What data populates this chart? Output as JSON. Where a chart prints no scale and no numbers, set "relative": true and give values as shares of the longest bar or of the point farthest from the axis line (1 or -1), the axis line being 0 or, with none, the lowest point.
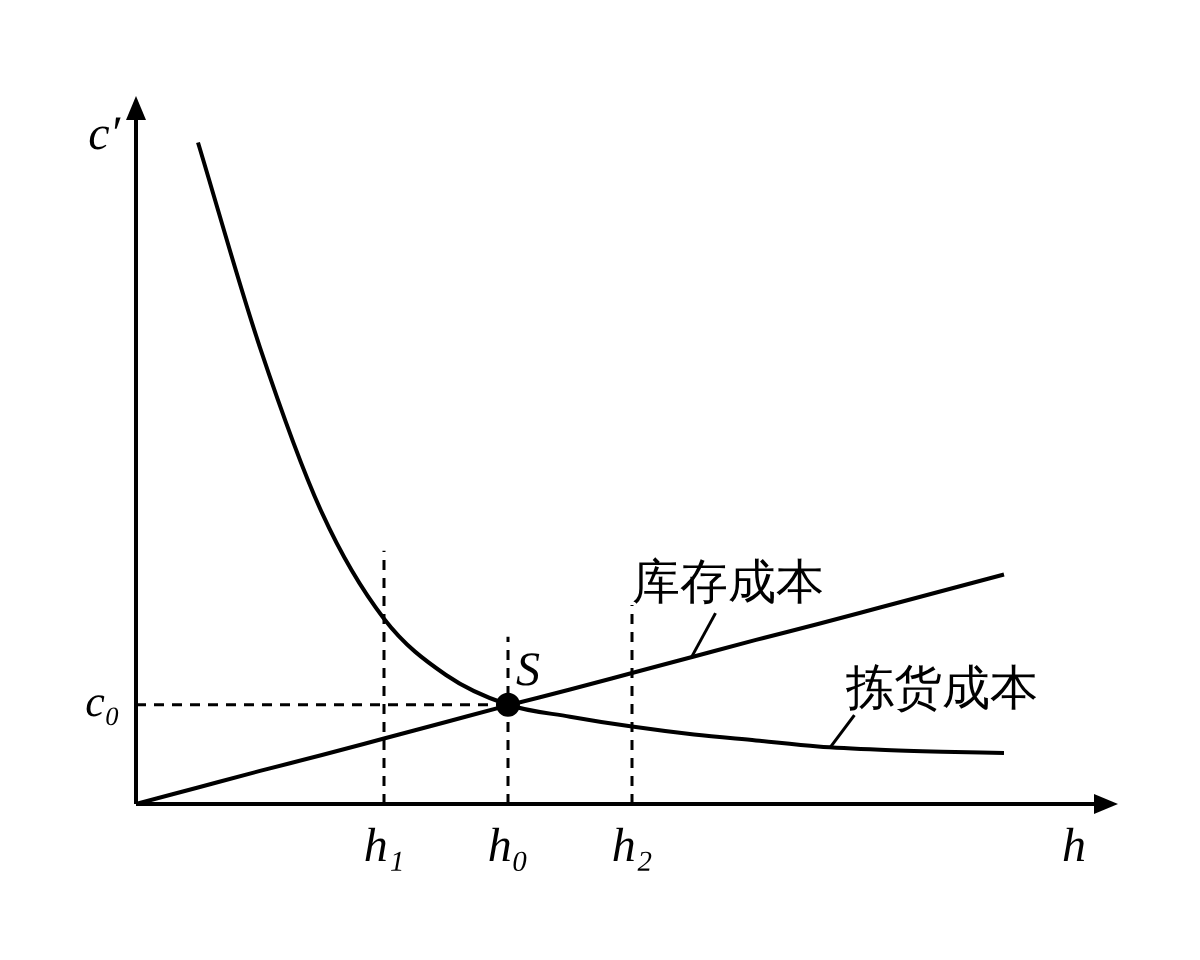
{
  "chart_data": {
    "type": "line",
    "relative": true,
    "xlabel": "h",
    "ylabel": "c′",
    "categories": [
      null,
      null,
      null,
      null,
      "h₁",
      null,
      "h₀",
      null,
      "h₂",
      null,
      null,
      null,
      null,
      null,
      null
    ],
    "series": [
      {
        "name": "库存成本",
        "color": "#000000",
        "values": [
          0,
          0.025,
          0.05,
          0.074,
          0.099,
          0.124,
          0.149,
          0.173,
          0.198,
          0.223,
          0.248,
          0.272,
          0.297,
          0.322,
          0.347
        ]
      },
      {
        "name": "拣货成本",
        "color": "#000000",
        "values": [
          null,
          1,
          0.69,
          0.44,
          0.28,
          0.195,
          0.15,
          0.132,
          0.117,
          0.105,
          0.096,
          0.087,
          0.082,
          0.079,
          0.077
        ]
      },
      {
        "type": "scatter",
        "color": "#000000",
        "marker": "circle",
        "values": [
          null,
          null,
          null,
          null,
          null,
          null,
          0.15,
          null,
          null,
          null,
          null,
          null,
          null,
          null,
          null
        ]
      }
    ],
    "ref_lines": [
      {
        "axis": "x",
        "value": "h₁",
        "line_style": "dashed",
        "color": "#000000"
      },
      {
        "axis": "x",
        "value": "h₀",
        "line_style": "dashed",
        "color": "#000000"
      },
      {
        "axis": "x",
        "value": "h₂",
        "line_style": "dashed",
        "color": "#000000"
      },
      {
        "axis": "y",
        "value": 0.15,
        "label": "c₀",
        "line_style": "dashed",
        "color": "#000000"
      }
    ],
    "annotations": [
      {
        "text": "S",
        "x": "h₀",
        "y": 0.15
      }
    ],
    "legend": false,
    "line_style": "solid"
  }
}
